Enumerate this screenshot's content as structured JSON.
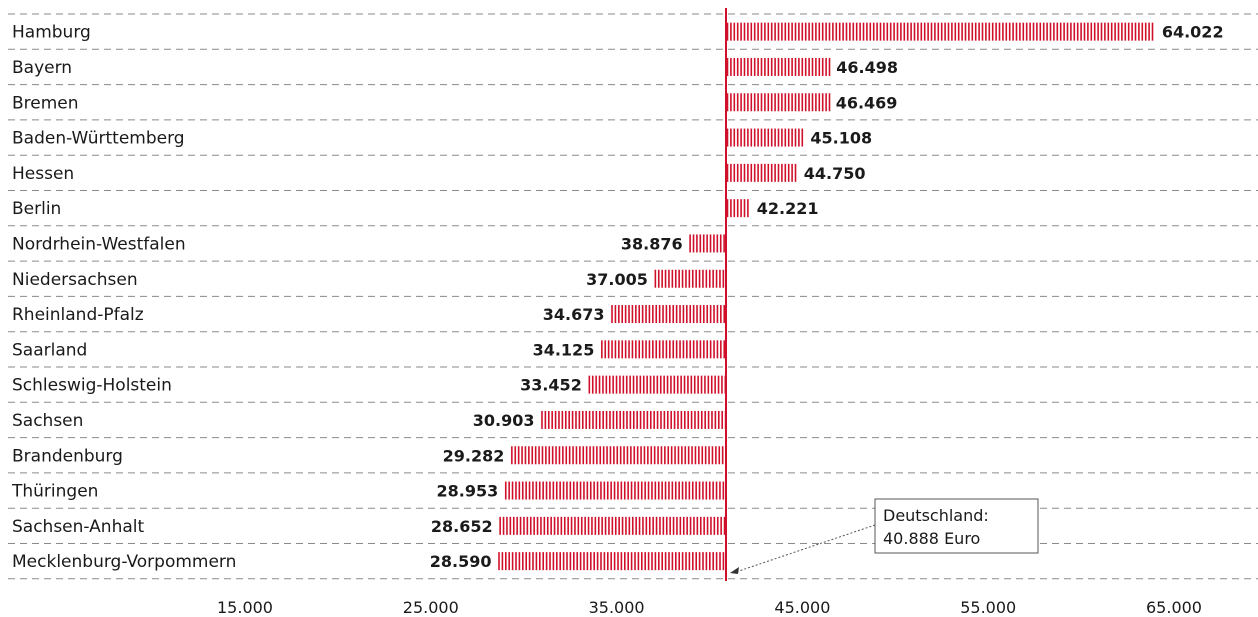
{
  "chart_data": {
    "type": "bar",
    "orientation": "horizontal",
    "categories": [
      "Hamburg",
      "Bayern",
      "Bremen",
      "Baden-Württemberg",
      "Hessen",
      "Berlin",
      "Nordrhein-Westfalen",
      "Niedersachsen",
      "Rheinland-Pfalz",
      "Saarland",
      "Schleswig-Holstein",
      "Sachsen",
      "Brandenburg",
      "Thüringen",
      "Sachsen-Anhalt",
      "Mecklenburg-Vorpommern"
    ],
    "values": [
      64022,
      46498,
      46469,
      45108,
      44750,
      42221,
      38876,
      37005,
      34673,
      34125,
      33452,
      30903,
      29282,
      28953,
      28652,
      28590
    ],
    "value_labels": [
      "64.022",
      "46.498",
      "46.469",
      "45.108",
      "44.750",
      "42.221",
      "38.876",
      "37.005",
      "34.673",
      "34.125",
      "33.452",
      "30.903",
      "29.282",
      "28.953",
      "28.652",
      "28.590"
    ],
    "baseline": 40888,
    "xlim": [
      5000,
      70000
    ],
    "xticks": [
      15000,
      25000,
      35000,
      45000,
      55000,
      65000
    ],
    "xtick_labels": [
      "15.000",
      "25.000",
      "35.000",
      "45.000",
      "55.000",
      "65.000"
    ],
    "grid": true,
    "bar_color": "#d0102a",
    "reference_line_color": "#d0102a",
    "annotation": {
      "line1": "Deutschland:",
      "line2": "40.888 Euro"
    }
  }
}
